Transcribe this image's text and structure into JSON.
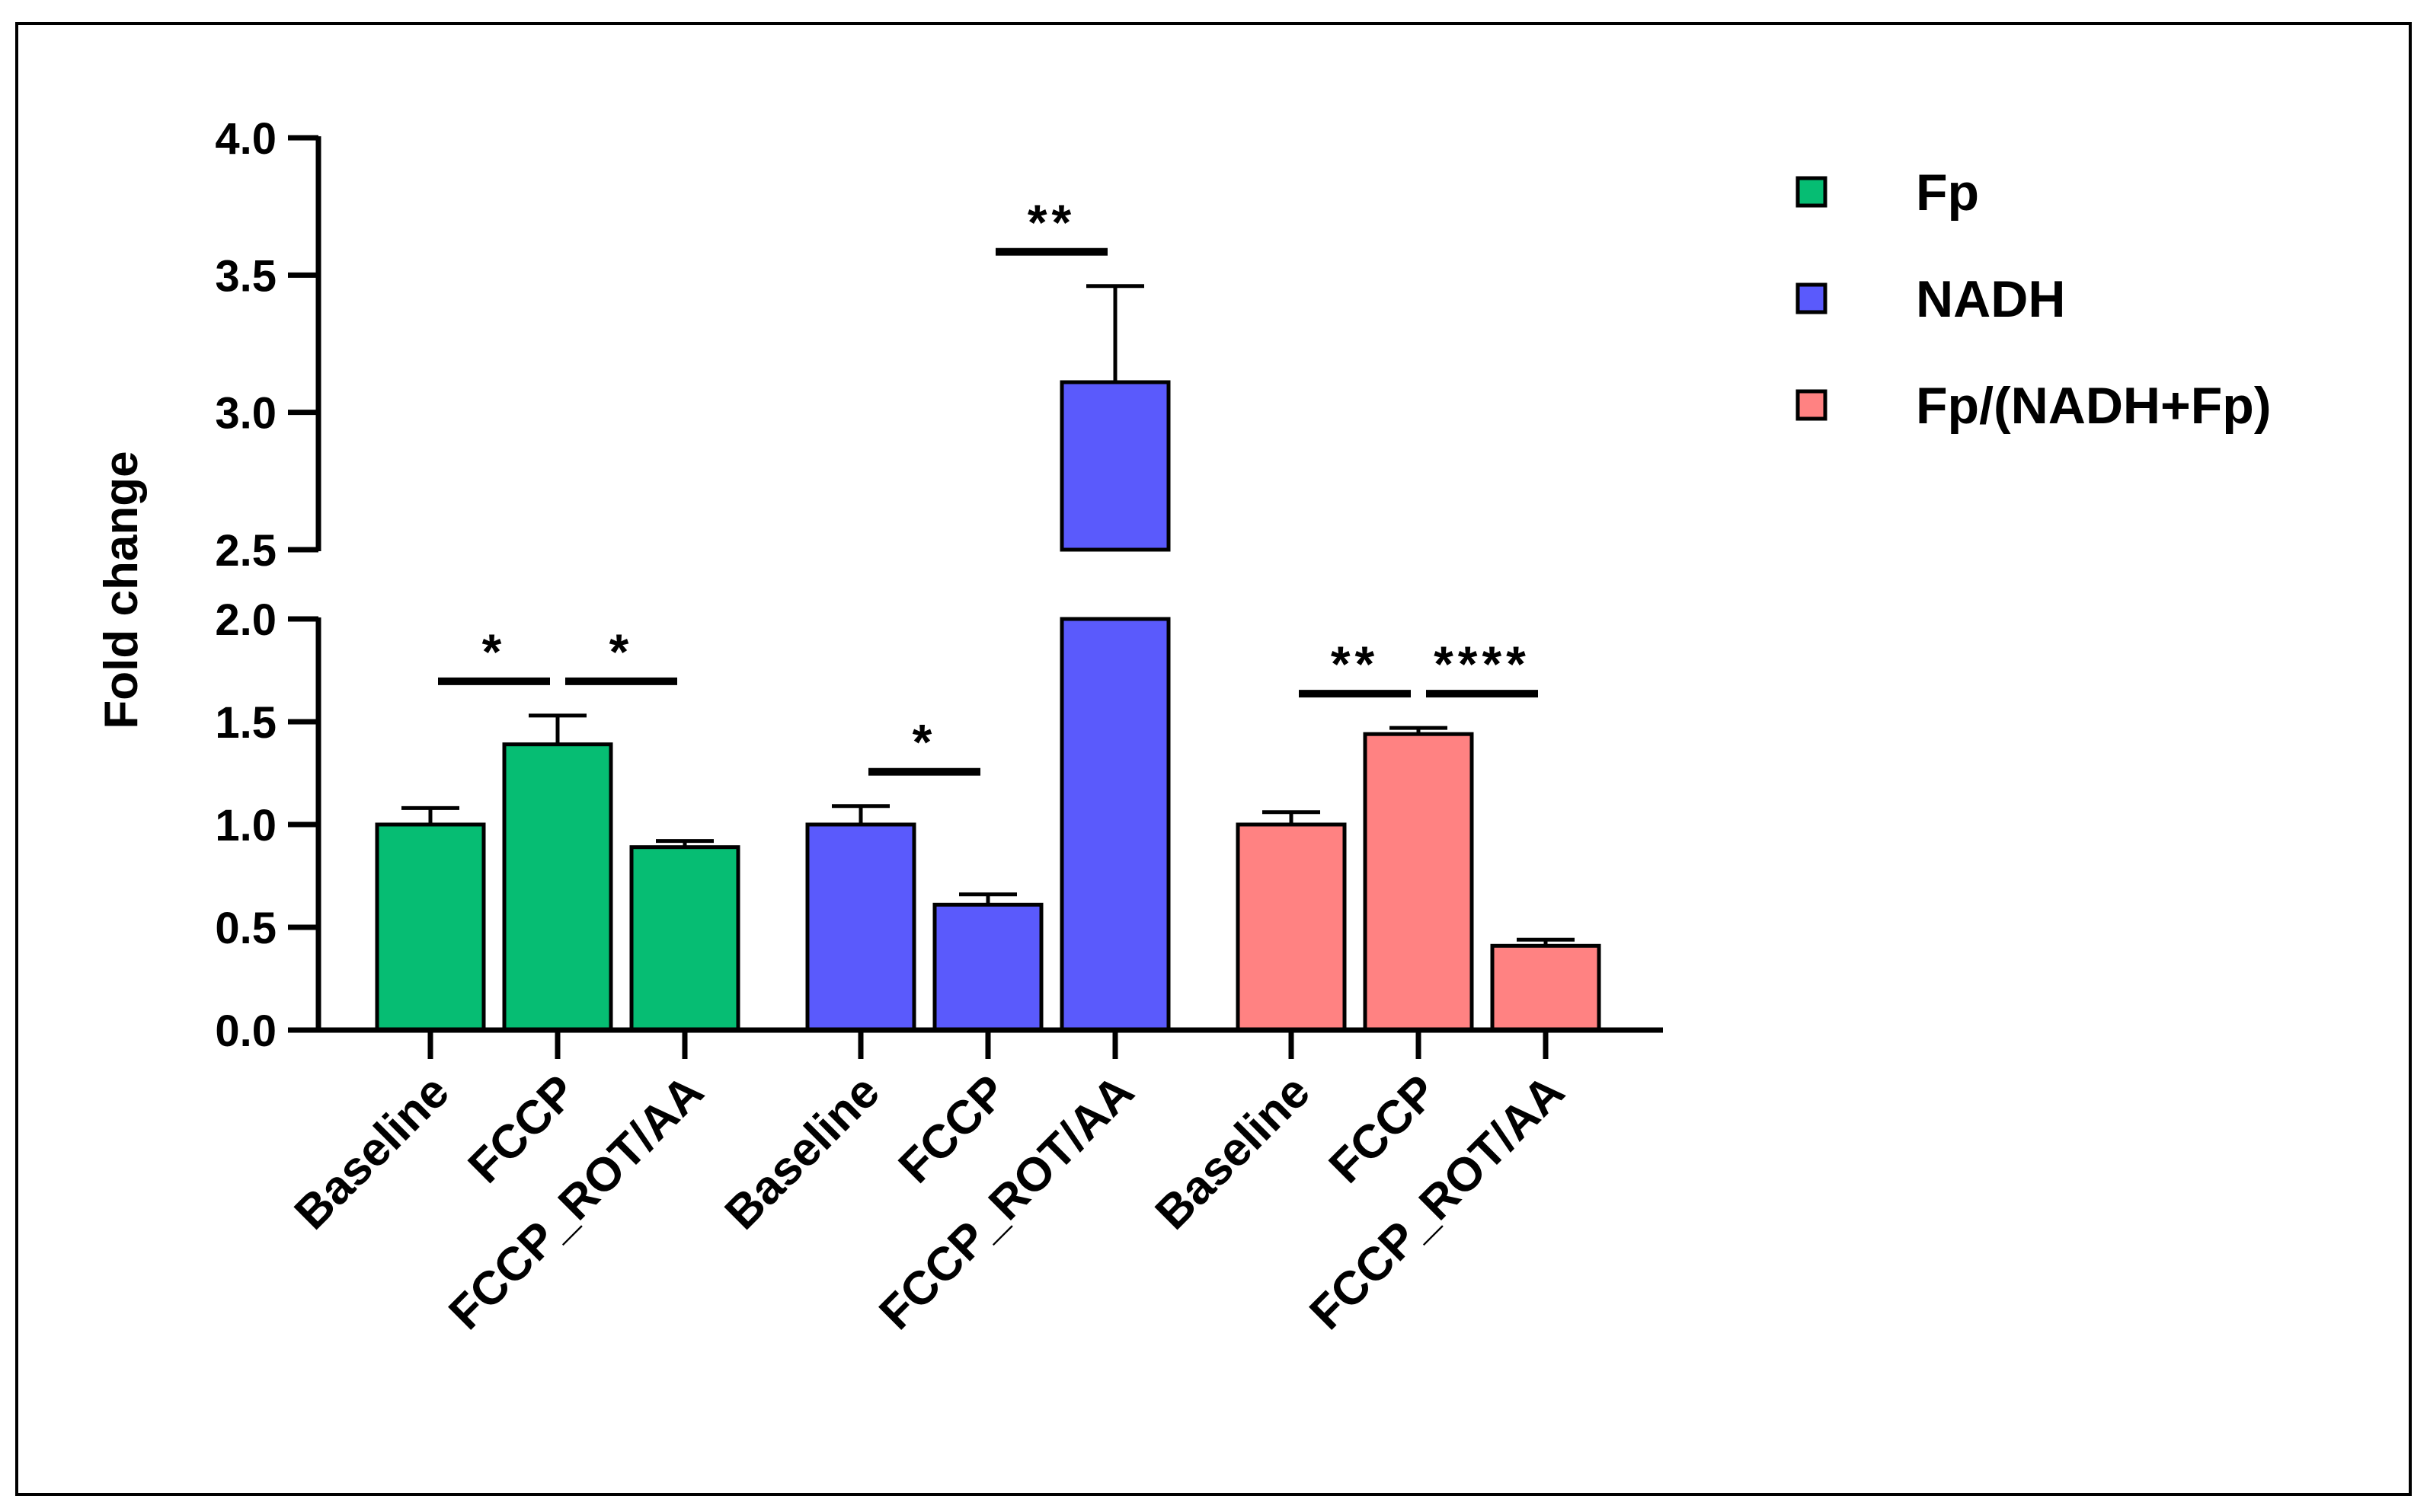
{
  "chart_data": {
    "type": "bar",
    "ylabel": "Fold change",
    "xlabel": "",
    "title": "",
    "ylim": [
      0,
      4.0
    ],
    "y_axis_break": [
      2.0,
      2.5
    ],
    "lower_ticks": [
      "0.0",
      "0.5",
      "1.0",
      "1.5",
      "2.0"
    ],
    "upper_ticks": [
      "2.5",
      "3.0",
      "3.5",
      "4.0"
    ],
    "categories": [
      "Baseline",
      "FCCP",
      "FCCP_ROT/AA"
    ],
    "legend_position": "right",
    "series": [
      {
        "name": "Fp",
        "color": "#06BD73",
        "values": [
          1.0,
          1.39,
          0.89
        ],
        "errors": [
          0.08,
          0.14,
          0.03
        ]
      },
      {
        "name": "NADH",
        "color": "#5A5AFC",
        "values": [
          1.0,
          0.61,
          3.11
        ],
        "errors": [
          0.09,
          0.05,
          0.35
        ]
      },
      {
        "name": "Fp/(NADH+Fp)",
        "color": "#FF8282",
        "values": [
          1.0,
          1.44,
          0.41
        ],
        "errors": [
          0.06,
          0.03,
          0.03
        ]
      }
    ],
    "significance": [
      {
        "series": 0,
        "from": 0,
        "to": 1,
        "label": "*"
      },
      {
        "series": 0,
        "from": 1,
        "to": 2,
        "label": "*"
      },
      {
        "series": 1,
        "from": 0,
        "to": 1,
        "label": "*"
      },
      {
        "series": 1,
        "from": 1,
        "to": 2,
        "label": "**"
      },
      {
        "series": 2,
        "from": 0,
        "to": 1,
        "label": "**"
      },
      {
        "series": 2,
        "from": 1,
        "to": 2,
        "label": "****"
      }
    ]
  }
}
